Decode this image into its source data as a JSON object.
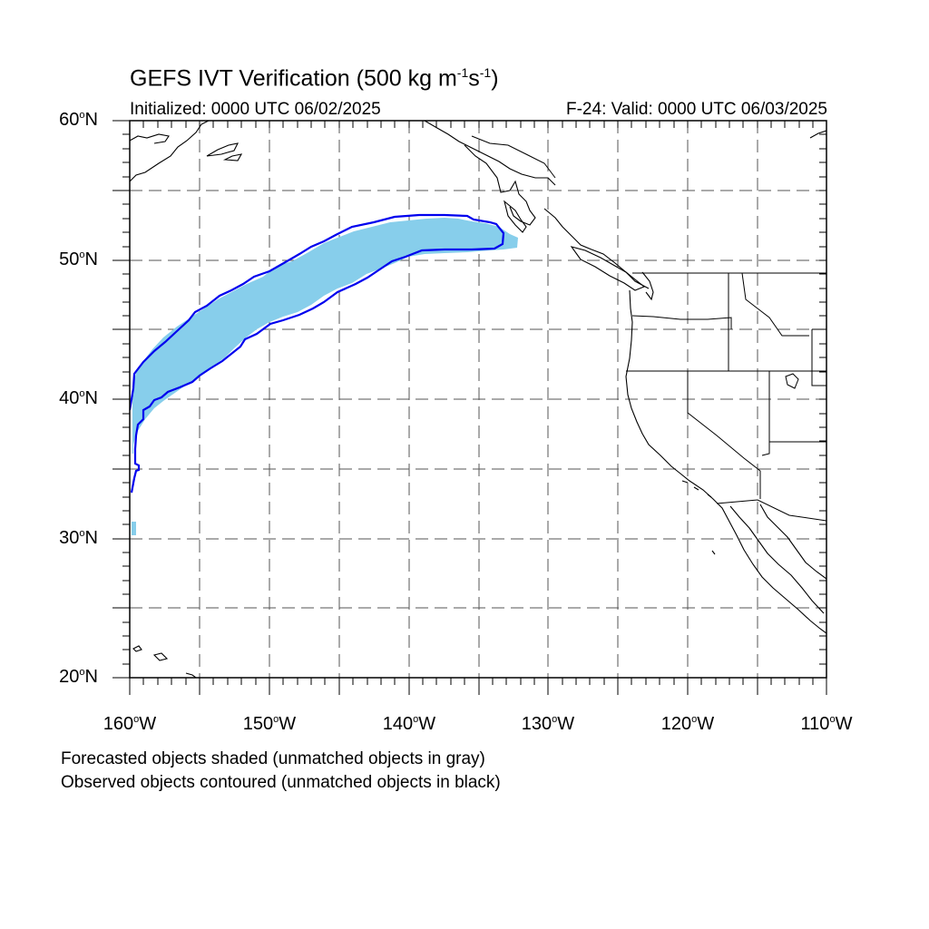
{
  "title": {
    "prefix": "GEFS IVT Verification (500 kg m",
    "sup1": "-1",
    "mid": "s",
    "sup2": "-1",
    "suffix": ")"
  },
  "subtitle_left": "Initialized: 0000 UTC 06/02/2025",
  "subtitle_right": "F-24: Valid: 0000 UTC 06/03/2025",
  "lat_labels": [
    {
      "num": "60",
      "hemi": "N"
    },
    {
      "num": "50",
      "hemi": "N"
    },
    {
      "num": "40",
      "hemi": "N"
    },
    {
      "num": "30",
      "hemi": "N"
    },
    {
      "num": "20",
      "hemi": "N"
    }
  ],
  "lon_labels": [
    {
      "num": "160",
      "hemi": "W"
    },
    {
      "num": "150",
      "hemi": "W"
    },
    {
      "num": "140",
      "hemi": "W"
    },
    {
      "num": "130",
      "hemi": "W"
    },
    {
      "num": "120",
      "hemi": "W"
    },
    {
      "num": "110",
      "hemi": "W"
    }
  ],
  "legend_notes": [
    "Forecasted objects shaded (unmatched objects in gray)",
    "Observed objects contoured (unmatched objects in black)"
  ],
  "colors": {
    "forecast_fill": "#87ceeb",
    "observed_contour": "#0000ee",
    "coastline": "#000000",
    "grid": "#555555"
  },
  "map_extent": {
    "lon_min": -160,
    "lon_max": -110,
    "lat_min": 20,
    "lat_max": 60
  }
}
